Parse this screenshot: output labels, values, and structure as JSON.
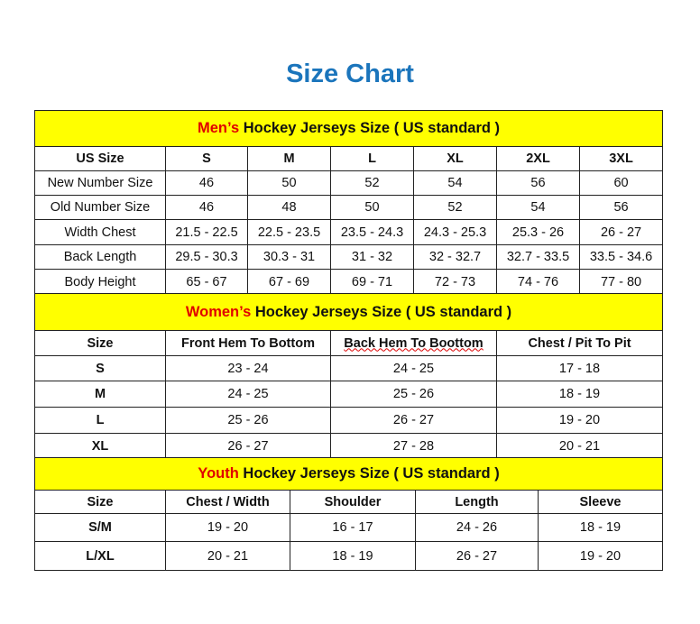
{
  "title": "Size Chart",
  "colors": {
    "title": "#1b75bc",
    "band": "#ffff00",
    "highlight": "#e00000"
  },
  "men": {
    "heading_highlight": "Men’s",
    "heading_rest": " Hockey Jerseys Size ( US standard )",
    "columns": [
      "US Size",
      "S",
      "M",
      "L",
      "XL",
      "2XL",
      "3XL"
    ],
    "rows": [
      [
        "New Number Size",
        "46",
        "50",
        "52",
        "54",
        "56",
        "60"
      ],
      [
        "Old Number Size",
        "46",
        "48",
        "50",
        "52",
        "54",
        "56"
      ],
      [
        "Width Chest",
        "21.5 - 22.5",
        "22.5 - 23.5",
        "23.5 - 24.3",
        "24.3 - 25.3",
        "25.3 - 26",
        "26 - 27"
      ],
      [
        "Back Length",
        "29.5 - 30.3",
        "30.3 - 31",
        "31 - 32",
        "32 - 32.7",
        "32.7 - 33.5",
        "33.5 - 34.6"
      ],
      [
        "Body Height",
        "65 - 67",
        "67 - 69",
        "69 - 71",
        "72 - 73",
        "74 - 76",
        "77 - 80"
      ]
    ]
  },
  "women": {
    "heading_highlight": "Women’s",
    "heading_rest": " Hockey Jerseys Size ( US standard )",
    "columns": [
      "Size",
      "Front Hem To Bottom",
      "Back Hem To Boottom",
      "Chest / Pit To Pit"
    ],
    "rows": [
      [
        "S",
        "23 - 24",
        "24 - 25",
        "17 - 18"
      ],
      [
        "M",
        "24 - 25",
        "25 - 26",
        "18 - 19"
      ],
      [
        "L",
        "25 - 26",
        "26 - 27",
        "19 - 20"
      ],
      [
        "XL",
        "26 - 27",
        "27 - 28",
        "20 - 21"
      ]
    ]
  },
  "youth": {
    "heading_highlight": "Youth",
    "heading_rest": " Hockey Jerseys Size ( US standard )",
    "columns": [
      "Size",
      "Chest / Width",
      "Shoulder",
      "Length",
      "Sleeve"
    ],
    "rows": [
      [
        "S/M",
        "19 - 20",
        "16 - 17",
        "24 - 26",
        "18 - 19"
      ],
      [
        "L/XL",
        "20 - 21",
        "18 - 19",
        "26 - 27",
        "19 - 20"
      ]
    ]
  }
}
